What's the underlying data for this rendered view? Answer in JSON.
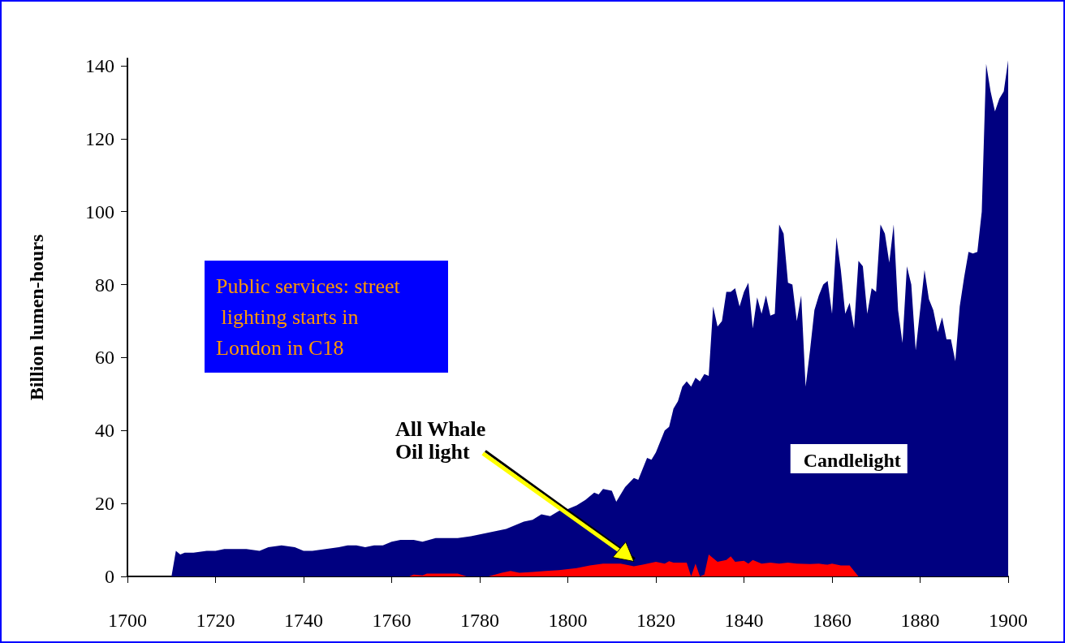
{
  "chart_data": {
    "type": "area",
    "ylabel": "Billion lumen-hours",
    "xlim": [
      1700,
      1900
    ],
    "ylim": [
      0,
      142
    ],
    "xticks": [
      1700,
      1720,
      1740,
      1760,
      1780,
      1800,
      1820,
      1840,
      1860,
      1880,
      1900
    ],
    "yticks": [
      0,
      20,
      40,
      60,
      80,
      100,
      120,
      140
    ],
    "grid": false,
    "legend": false,
    "marker": "none",
    "annotations": [
      "Public services: street lighting starts in London in C18",
      {
        "text": "All Whale Oil light",
        "x": 1815,
        "y": 3
      }
    ],
    "series": [
      {
        "name": "Candlelight",
        "color": "#000080",
        "x": [
          1700,
          1710,
          1711,
          1712,
          1713,
          1715,
          1718,
          1720,
          1722,
          1727,
          1730,
          1732,
          1735,
          1738,
          1740,
          1742,
          1745,
          1748,
          1750,
          1752,
          1754,
          1756,
          1758,
          1760,
          1762,
          1765,
          1767,
          1770,
          1775,
          1778,
          1780,
          1782,
          1784,
          1786,
          1788,
          1790,
          1792,
          1794,
          1796,
          1798,
          1800,
          1802,
          1804,
          1806,
          1807,
          1808,
          1810,
          1811,
          1813,
          1815,
          1816,
          1817,
          1818,
          1819,
          1820,
          1822,
          1823,
          1824,
          1825,
          1826,
          1827,
          1828,
          1829,
          1830,
          1831,
          1832,
          1833,
          1834,
          1835,
          1836,
          1837,
          1838,
          1839,
          1840,
          1841,
          1842,
          1843,
          1844,
          1845,
          1846,
          1847,
          1848,
          1849,
          1850,
          1851,
          1852,
          1853,
          1854,
          1855,
          1856,
          1857,
          1858,
          1859,
          1860,
          1861,
          1862,
          1863,
          1864,
          1865,
          1866,
          1867,
          1868,
          1869,
          1870,
          1871,
          1872,
          1873,
          1874,
          1875,
          1876,
          1877,
          1878,
          1879,
          1880,
          1881,
          1882,
          1883,
          1884,
          1885,
          1886,
          1887,
          1888,
          1889,
          1890,
          1891,
          1892,
          1893,
          1894,
          1895,
          1896,
          1897,
          1898,
          1899,
          1900
        ],
        "values": [
          0,
          0,
          7,
          6,
          6.5,
          6.5,
          7,
          7,
          7.5,
          7.5,
          7,
          8,
          8.5,
          8,
          7,
          7,
          7.5,
          8,
          8.5,
          8.5,
          8,
          8.5,
          8.5,
          9.5,
          10,
          10,
          9.5,
          10.5,
          10.5,
          11,
          11.5,
          12,
          12.5,
          13,
          14,
          15,
          15.5,
          17,
          16.5,
          18,
          18.5,
          19.5,
          21,
          23,
          22.5,
          24,
          23.5,
          20.5,
          24.5,
          27,
          26.5,
          29.5,
          32.5,
          32,
          34,
          40,
          41,
          46,
          48,
          52,
          53.5,
          52,
          54.5,
          53.5,
          55.5,
          55,
          74,
          68.5,
          70,
          78,
          78,
          79,
          74,
          78,
          80.5,
          68,
          76.5,
          72,
          77,
          71.5,
          72,
          96.5,
          94,
          80.5,
          80,
          70,
          77,
          52,
          62,
          73,
          77,
          80,
          81,
          72,
          93,
          84,
          72,
          75,
          68,
          86.5,
          85,
          72,
          79,
          78,
          96.5,
          94,
          86,
          96.5,
          73,
          64,
          85,
          80,
          62,
          73,
          84,
          76,
          73,
          67,
          71,
          65,
          65,
          59,
          74,
          82,
          89,
          88.5,
          89,
          100,
          140.5,
          133,
          127.5,
          131,
          133,
          141.5
        ]
      },
      {
        "color": "#ff0000",
        "x": [
          1700,
          1764,
          1765,
          1767,
          1768,
          1775,
          1777,
          1782,
          1785,
          1787,
          1789,
          1792,
          1795,
          1798,
          1800,
          1802,
          1805,
          1808,
          1812,
          1815,
          1817,
          1820,
          1822,
          1823,
          1824,
          1827,
          1828,
          1829,
          1830,
          1831,
          1832,
          1834,
          1836,
          1837,
          1838,
          1840,
          1841,
          1842,
          1844,
          1846,
          1848,
          1850,
          1852,
          1855,
          1857,
          1859,
          1860,
          1862,
          1864,
          1865,
          1866
        ],
        "values": [
          0,
          0,
          0.5,
          0.3,
          0.8,
          0.8,
          0,
          0,
          1,
          1.5,
          1,
          1.2,
          1.5,
          1.7,
          2,
          2.3,
          3,
          3.5,
          3.5,
          2.8,
          3.2,
          4,
          3.5,
          4.2,
          3.8,
          3.8,
          0,
          3.5,
          0,
          0.5,
          6,
          4,
          4.5,
          5.5,
          4,
          4.3,
          3.5,
          4.5,
          3.5,
          3.8,
          3.5,
          3.8,
          3.5,
          3.4,
          3.5,
          3.2,
          3.5,
          3,
          3,
          1.5,
          0
        ]
      }
    ]
  }
}
